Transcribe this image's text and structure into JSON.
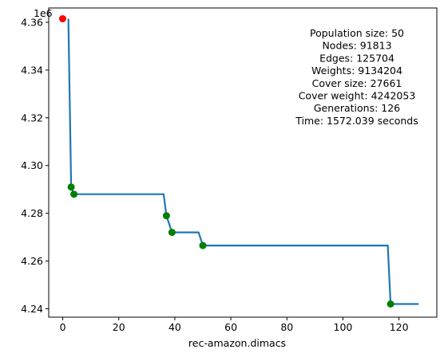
{
  "chart_data": {
    "type": "line",
    "xlabel": "rec-amazon.dimacs",
    "ylabel": "",
    "offset_text": "1e6",
    "xlim": [
      -5,
      133.5
    ],
    "ylim": [
      4236500,
      4366000
    ],
    "x_ticks": [
      0,
      20,
      40,
      60,
      80,
      100,
      120
    ],
    "x_tick_labels": [
      "0",
      "20",
      "40",
      "60",
      "80",
      "100",
      "120"
    ],
    "y_ticks": [
      4240000,
      4260000,
      4280000,
      4300000,
      4320000,
      4340000,
      4360000
    ],
    "y_tick_labels": [
      "4.24",
      "4.26",
      "4.28",
      "4.30",
      "4.32",
      "4.34",
      "4.36"
    ],
    "grid": false,
    "series": [
      {
        "color": "#1f77b4",
        "x": [
          2,
          3,
          4,
          36,
          37,
          39,
          48.5,
          50,
          116,
          117,
          127
        ],
        "y": [
          4361500,
          4291000,
          4288000,
          4288000,
          4279000,
          4272000,
          4272000,
          4266500,
          4266500,
          4242000,
          4242000
        ]
      }
    ],
    "points": [
      {
        "x": 0,
        "y": 4361500,
        "color": "#ff0000"
      },
      {
        "x": 3,
        "y": 4291000,
        "color": "#008000"
      },
      {
        "x": 4,
        "y": 4288000,
        "color": "#008000"
      },
      {
        "x": 37,
        "y": 4279000,
        "color": "#008000"
      },
      {
        "x": 39,
        "y": 4272000,
        "color": "#008000"
      },
      {
        "x": 50,
        "y": 4266500,
        "color": "#008000"
      },
      {
        "x": 117,
        "y": 4242000,
        "color": "#008000"
      }
    ],
    "annotation_lines": [
      "Population size: 50",
      "Nodes: 91813",
      "Edges: 125704",
      "Weights: 9134204",
      "Cover size: 27661",
      "Cover weight: 4242053",
      "Generations: 126",
      "Time: 1572.039 seconds"
    ],
    "annotation_placement": "top-right"
  }
}
